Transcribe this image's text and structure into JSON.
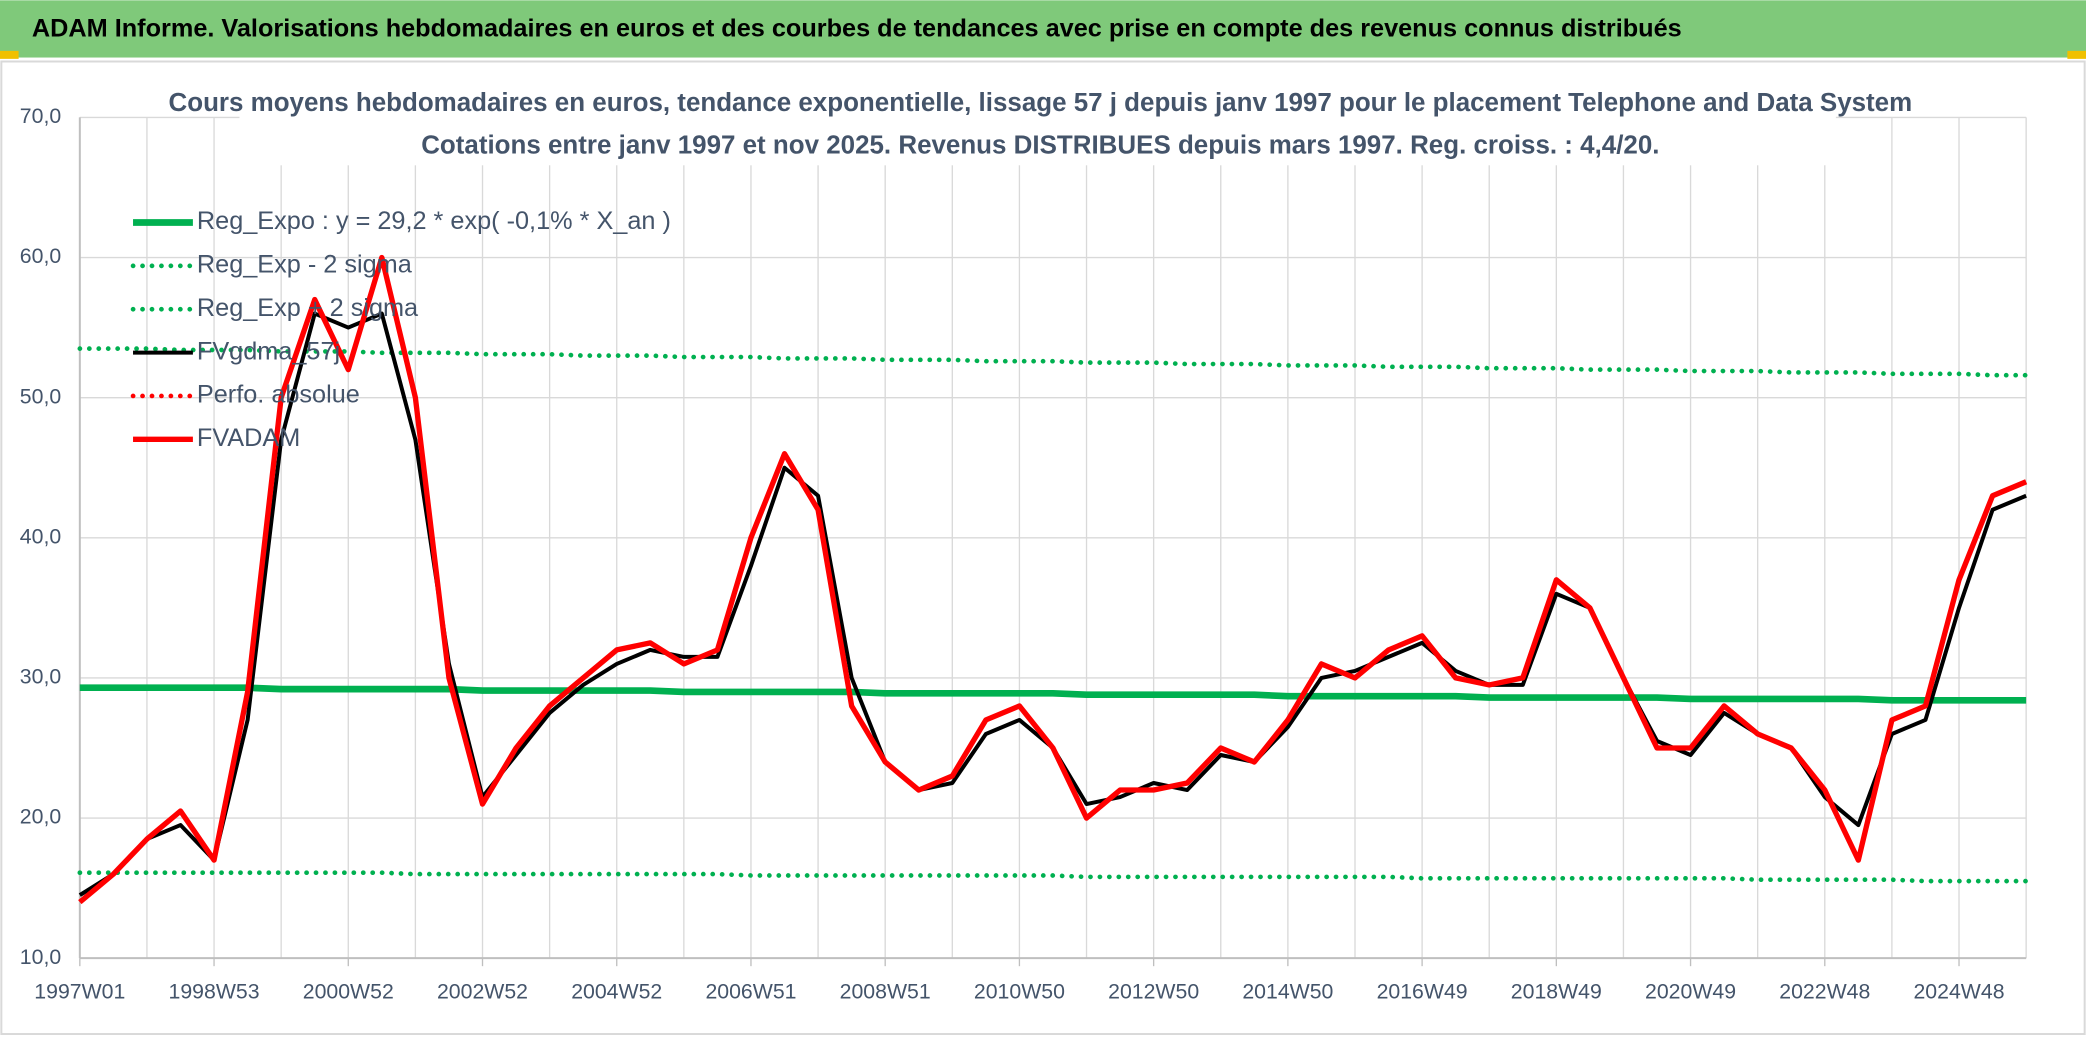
{
  "header": {
    "title": "ADAM Informe. Valorisations hebdomadaires en euros et des courbes de tendances avec prise en compte des revenus connus distribués"
  },
  "chart_data": {
    "type": "line",
    "title": "Cours moyens hebdomadaires en euros, tendance exponentielle, lissage 57 j depuis janv 1997 pour le placement Telephone and Data System",
    "subtitle": "Cotations entre janv 1997 et nov 2025. Revenus DISTRIBUES depuis mars 1997. Reg. croiss. : 4,4/20.",
    "categories": [
      "1997W01",
      null,
      null,
      null,
      "1998W53",
      null,
      null,
      null,
      "2000W52",
      null,
      null,
      null,
      "2002W52",
      null,
      null,
      null,
      "2004W52",
      null,
      null,
      null,
      "2006W51",
      null,
      null,
      null,
      "2008W51",
      null,
      null,
      null,
      "2010W50",
      null,
      null,
      null,
      "2012W50",
      null,
      null,
      null,
      "2014W50",
      null,
      null,
      null,
      "2016W49",
      null,
      null,
      null,
      "2018W49",
      null,
      null,
      null,
      "2020W49",
      null,
      null,
      null,
      "2022W48",
      null,
      null,
      null,
      "2024W48",
      null,
      null
    ],
    "ylim": [
      10,
      70
    ],
    "yticks": [
      {
        "value": 10,
        "label": "10,0"
      },
      {
        "value": 20,
        "label": "20,0"
      },
      {
        "value": 30,
        "label": "30,0"
      },
      {
        "value": 40,
        "label": "40,0"
      },
      {
        "value": 50,
        "label": "50,0"
      },
      {
        "value": 60,
        "label": "60,0"
      },
      {
        "value": 70,
        "label": "70,0"
      }
    ],
    "grid": true,
    "legend": "top-left",
    "series": [
      {
        "name": "Reg_Expo : y = 29,2 * exp( -0,1% *  X_an )",
        "color": "#00b050",
        "line_style": "solid",
        "values": [
          29.3,
          29.3,
          29.3,
          29.3,
          29.3,
          29.3,
          29.2,
          29.2,
          29.2,
          29.2,
          29.2,
          29.2,
          29.1,
          29.1,
          29.1,
          29.1,
          29.1,
          29.1,
          29.0,
          29.0,
          29.0,
          29.0,
          29.0,
          29.0,
          28.9,
          28.9,
          28.9,
          28.9,
          28.9,
          28.9,
          28.8,
          28.8,
          28.8,
          28.8,
          28.8,
          28.8,
          28.7,
          28.7,
          28.7,
          28.7,
          28.7,
          28.7,
          28.6,
          28.6,
          28.6,
          28.6,
          28.6,
          28.6,
          28.5,
          28.5,
          28.5,
          28.5,
          28.5,
          28.5,
          28.4,
          28.4,
          28.4,
          28.4,
          28.4
        ]
      },
      {
        "name": "Reg_Exp - 2 sigma",
        "color": "#00b050",
        "line_style": "dotted",
        "values": [
          16.1,
          16.1,
          16.1,
          16.1,
          16.1,
          16.1,
          16.1,
          16.1,
          16.1,
          16.1,
          16.0,
          16.0,
          16.0,
          16.0,
          16.0,
          16.0,
          16.0,
          16.0,
          16.0,
          16.0,
          15.9,
          15.9,
          15.9,
          15.9,
          15.9,
          15.9,
          15.9,
          15.9,
          15.9,
          15.9,
          15.8,
          15.8,
          15.8,
          15.8,
          15.8,
          15.8,
          15.8,
          15.8,
          15.8,
          15.8,
          15.7,
          15.7,
          15.7,
          15.7,
          15.7,
          15.7,
          15.7,
          15.7,
          15.7,
          15.7,
          15.6,
          15.6,
          15.6,
          15.6,
          15.6,
          15.5,
          15.5,
          15.5,
          15.5
        ]
      },
      {
        "name": "Reg_Exp + 2 sigma",
        "color": "#00b050",
        "line_style": "dotted",
        "values": [
          53.5,
          53.5,
          53.5,
          53.4,
          53.4,
          53.4,
          53.3,
          53.3,
          53.3,
          53.2,
          53.2,
          53.2,
          53.1,
          53.1,
          53.1,
          53.0,
          53.0,
          53.0,
          52.9,
          52.9,
          52.9,
          52.8,
          52.8,
          52.8,
          52.7,
          52.7,
          52.7,
          52.6,
          52.6,
          52.6,
          52.5,
          52.5,
          52.5,
          52.4,
          52.4,
          52.4,
          52.3,
          52.3,
          52.3,
          52.2,
          52.2,
          52.2,
          52.1,
          52.1,
          52.1,
          52.0,
          52.0,
          52.0,
          51.9,
          51.9,
          51.9,
          51.8,
          51.8,
          51.8,
          51.7,
          51.7,
          51.7,
          51.6,
          51.6
        ]
      },
      {
        "name": "FVgdma_57j",
        "color": "#000000",
        "line_style": "solid",
        "values": [
          14.5,
          16,
          18.5,
          19.5,
          17,
          27,
          47,
          56,
          55,
          56,
          47,
          31,
          21.5,
          24.5,
          27.5,
          29.5,
          31,
          32,
          31.5,
          31.5,
          38,
          45,
          43,
          30,
          24,
          22,
          22.5,
          26,
          27,
          25,
          21,
          21.5,
          22.5,
          22,
          24.5,
          24,
          26.5,
          30,
          30.5,
          31.5,
          32.5,
          30.5,
          29.5,
          29.5,
          36,
          35,
          30,
          25.5,
          24.5,
          27.5,
          26,
          25,
          21.5,
          19.5,
          26,
          27,
          35,
          42,
          43
        ]
      },
      {
        "name": "Perfo. absolue",
        "color": "#ff0000",
        "line_style": "dotted",
        "values": [
          null,
          null,
          null,
          null,
          null,
          null,
          null,
          null,
          null,
          null,
          null,
          null,
          null,
          null,
          null,
          null,
          null,
          null,
          null,
          null,
          null,
          null,
          null,
          null,
          null,
          null,
          null,
          null,
          null,
          null,
          null,
          null,
          null,
          null,
          null,
          null,
          null,
          null,
          null,
          null,
          null,
          null,
          null,
          null,
          null,
          null,
          null,
          null,
          null,
          null,
          null,
          null,
          null,
          null,
          null,
          null,
          null,
          null,
          null
        ]
      },
      {
        "name": "FVADAM",
        "color": "#ff0000",
        "line_style": "solid",
        "values": [
          14,
          16,
          18.5,
          20.5,
          17,
          29,
          50,
          57,
          52,
          60,
          50,
          30,
          21,
          25,
          28,
          30,
          32,
          32.5,
          31,
          32,
          40,
          46,
          42,
          28,
          24,
          22,
          23,
          27,
          28,
          25,
          20,
          22,
          22,
          22.5,
          25,
          24,
          27,
          31,
          30,
          32,
          33,
          30,
          29.5,
          30,
          37,
          35,
          30,
          25,
          25,
          28,
          26,
          25,
          22,
          17,
          27,
          28,
          37,
          43,
          44
        ]
      }
    ]
  }
}
